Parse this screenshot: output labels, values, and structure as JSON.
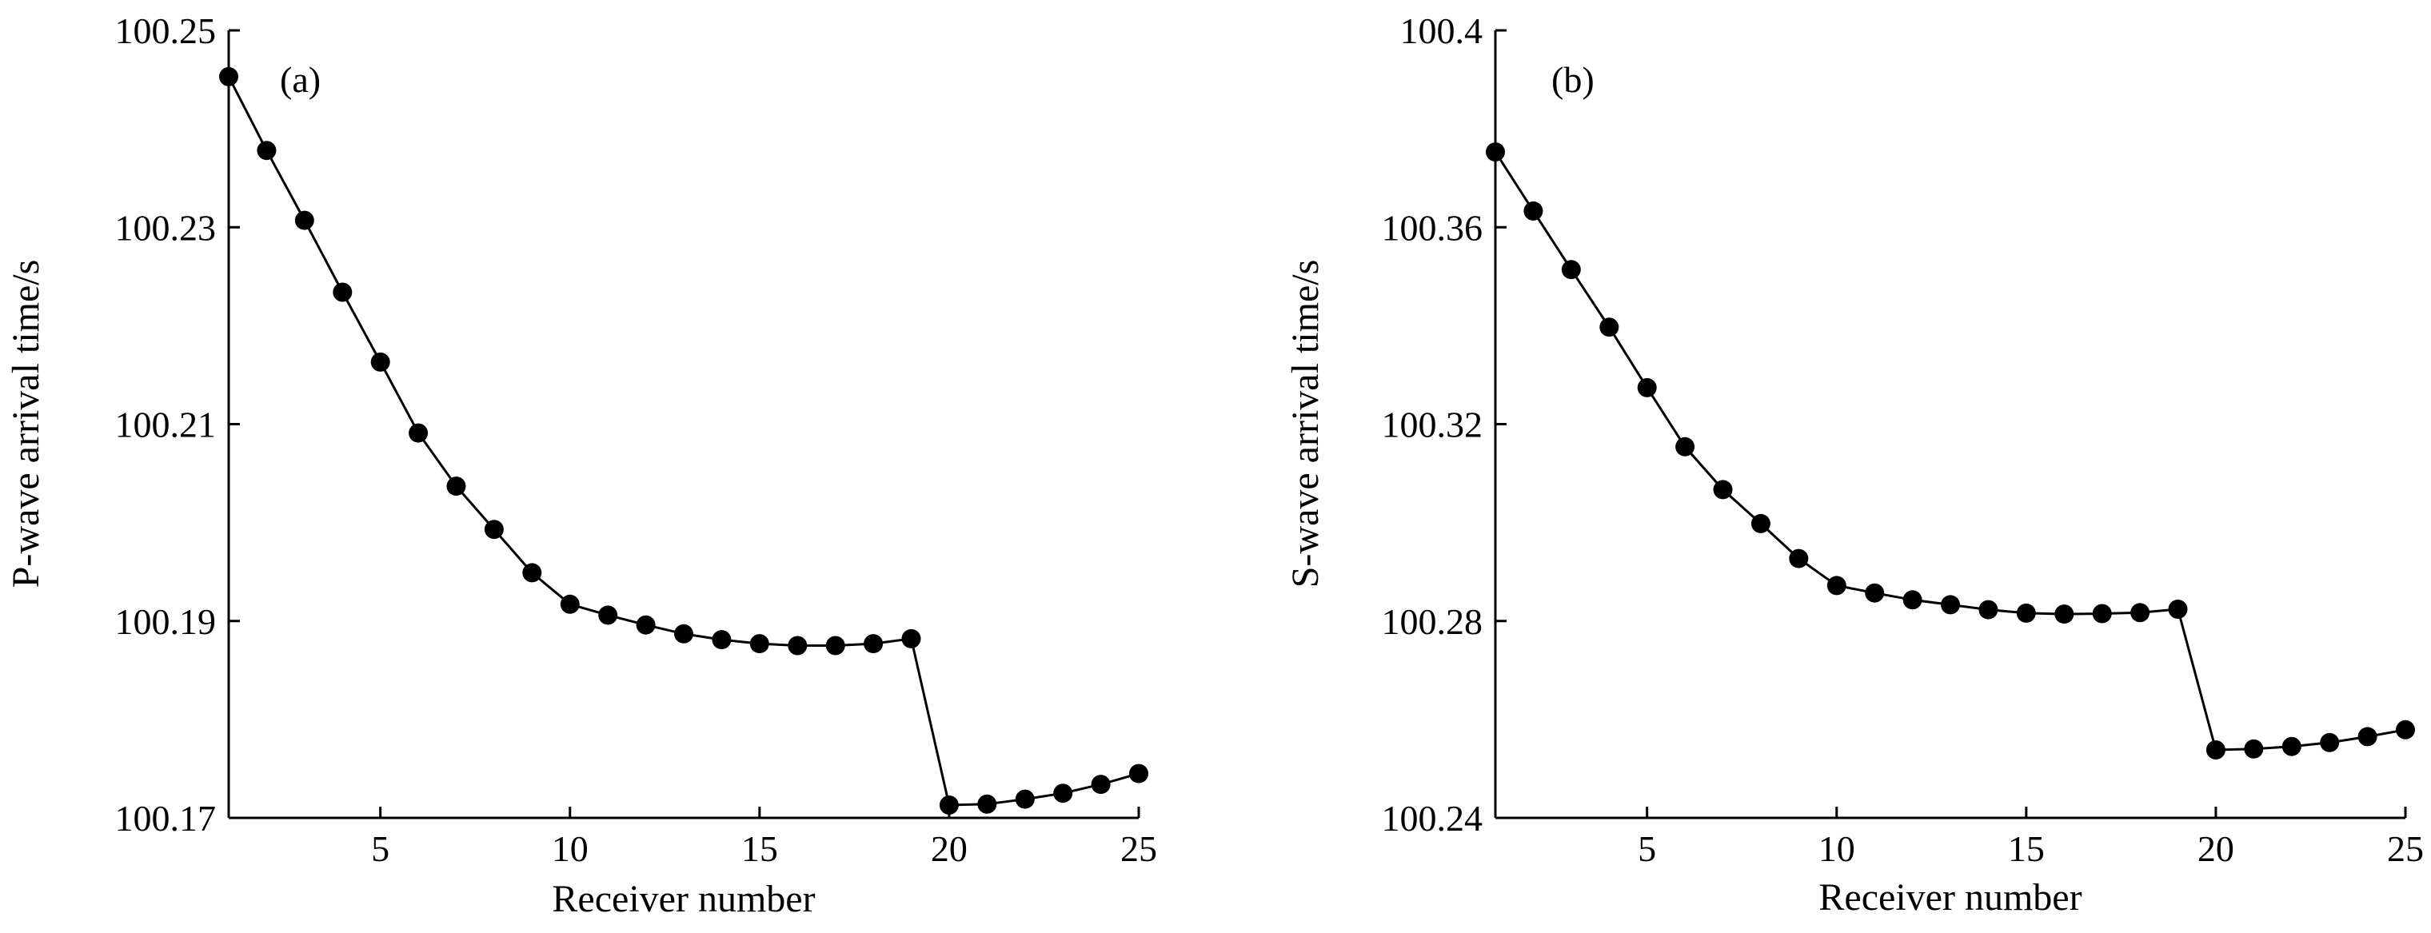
{
  "chart_data": [
    {
      "type": "line",
      "panel_label": "(a)",
      "xlabel": "Receiver number",
      "ylabel": "P-wave arrival time/s",
      "xlim": [
        1,
        25
      ],
      "ylim": [
        100.17,
        100.25
      ],
      "xticks": [
        5,
        10,
        15,
        20,
        25
      ],
      "yticks": [
        100.17,
        100.19,
        100.21,
        100.23,
        100.25
      ],
      "ytick_labels": [
        "100.17",
        "100.19",
        "100.21",
        "100.23",
        "100.25"
      ],
      "grid": false,
      "marker": "filled-circle",
      "series": [
        {
          "name": "P-wave arrival time",
          "x": [
            1,
            2,
            3,
            4,
            5,
            6,
            7,
            8,
            9,
            10,
            11,
            12,
            13,
            14,
            15,
            16,
            17,
            18,
            19,
            20,
            21,
            22,
            23,
            24,
            25
          ],
          "values": [
            100.2453,
            100.2378,
            100.2307,
            100.2234,
            100.2163,
            100.2091,
            100.2037,
            100.1993,
            100.1949,
            100.1917,
            100.1906,
            100.1896,
            100.1887,
            100.1881,
            100.1877,
            100.1875,
            100.1875,
            100.1877,
            100.1882,
            100.1713,
            100.1714,
            100.1719,
            100.1725,
            100.1734,
            100.1745
          ]
        }
      ]
    },
    {
      "type": "line",
      "panel_label": "(b)",
      "xlabel": "Receiver number",
      "ylabel": "S-wave arrival time/s",
      "xlim": [
        1,
        25
      ],
      "ylim": [
        100.24,
        100.4
      ],
      "xticks": [
        5,
        10,
        15,
        20,
        25
      ],
      "yticks": [
        100.24,
        100.28,
        100.32,
        100.36,
        100.4
      ],
      "ytick_labels": [
        "100.24",
        "100.28",
        "100.32",
        "100.36",
        "100.4"
      ],
      "grid": false,
      "marker": "filled-circle",
      "series": [
        {
          "name": "S-wave arrival time",
          "x": [
            1,
            2,
            3,
            4,
            5,
            6,
            7,
            8,
            9,
            10,
            11,
            12,
            13,
            14,
            15,
            16,
            17,
            18,
            19,
            20,
            21,
            22,
            23,
            24,
            25
          ],
          "values": [
            100.3753,
            100.3633,
            100.3514,
            100.3397,
            100.3274,
            100.3154,
            100.3067,
            100.2998,
            100.2927,
            100.2872,
            100.2857,
            100.2843,
            100.2833,
            100.2823,
            100.2816,
            100.2814,
            100.2815,
            100.2817,
            100.2824,
            100.2538,
            100.254,
            100.2545,
            100.2553,
            100.2565,
            100.2579
          ]
        }
      ]
    }
  ]
}
